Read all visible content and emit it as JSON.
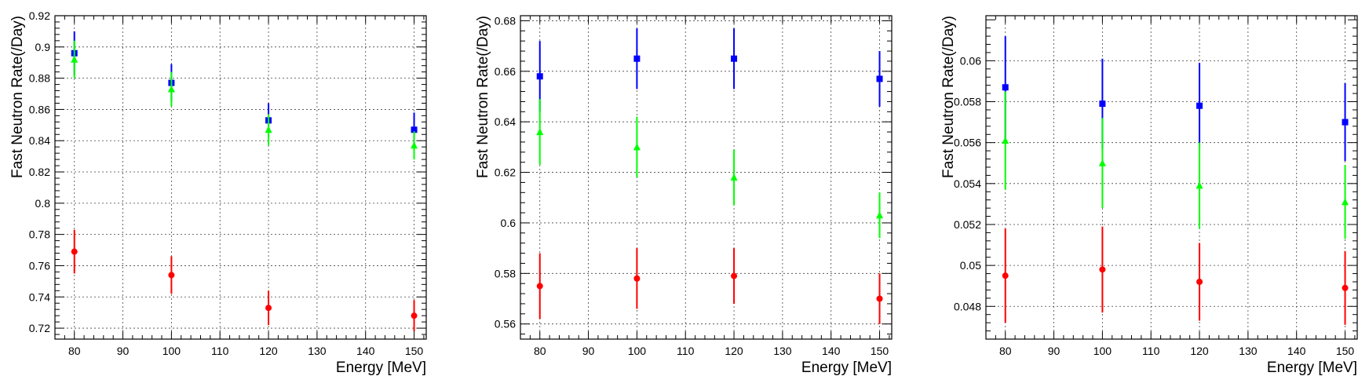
{
  "chart_data": [
    {
      "type": "scatter",
      "xlabel": "Energy [MeV]",
      "ylabel": "Fast Neutron Rate(/Day)",
      "xlim": [
        76,
        152.5
      ],
      "ylim": [
        0.713,
        0.92
      ],
      "xticks": [
        80,
        90,
        100,
        110,
        120,
        130,
        140,
        150
      ],
      "yticks": [
        0.72,
        0.74,
        0.76,
        0.78,
        0.8,
        0.82,
        0.84,
        0.86,
        0.88,
        0.9,
        0.92
      ],
      "ytick_labels": [
        "0.72",
        "0.74",
        "0.76",
        "0.78",
        "0.8",
        "0.82",
        "0.84",
        "0.86",
        "0.88",
        "0.9",
        "0.92"
      ],
      "grid": true,
      "series": [
        {
          "color": "#0000ff",
          "marker": "square",
          "x": [
            80,
            100,
            120,
            150
          ],
          "y": [
            0.896,
            0.877,
            0.853,
            0.847
          ],
          "err": [
            0.014,
            0.012,
            0.011,
            0.011
          ]
        },
        {
          "color": "#00ff00",
          "marker": "triangle",
          "x": [
            80,
            100,
            120,
            150
          ],
          "y": [
            0.892,
            0.873,
            0.847,
            0.837
          ],
          "err": [
            0.012,
            0.011,
            0.01,
            0.009
          ]
        },
        {
          "color": "#ff0000",
          "marker": "circle",
          "x": [
            80,
            100,
            120,
            150
          ],
          "y": [
            0.769,
            0.754,
            0.733,
            0.728
          ],
          "err": [
            0.014,
            0.012,
            0.011,
            0.01
          ]
        }
      ]
    },
    {
      "type": "scatter",
      "xlabel": "Energy [MeV]",
      "ylabel": "Fast Neutron Rate(/Day)",
      "xlim": [
        76,
        152.5
      ],
      "ylim": [
        0.554,
        0.682
      ],
      "xticks": [
        80,
        90,
        100,
        110,
        120,
        130,
        140,
        150
      ],
      "yticks": [
        0.56,
        0.58,
        0.6,
        0.62,
        0.64,
        0.66,
        0.68
      ],
      "ytick_labels": [
        "0.56",
        "0.58",
        "0.6",
        "0.62",
        "0.64",
        "0.66",
        "0.68"
      ],
      "grid": true,
      "series": [
        {
          "color": "#0000ff",
          "marker": "square",
          "x": [
            80,
            100,
            120,
            150
          ],
          "y": [
            0.658,
            0.665,
            0.665,
            0.657
          ],
          "err": [
            0.014,
            0.012,
            0.012,
            0.011
          ]
        },
        {
          "color": "#00ff00",
          "marker": "triangle",
          "x": [
            80,
            100,
            120,
            150
          ],
          "y": [
            0.636,
            0.63,
            0.618,
            0.603
          ],
          "err": [
            0.013,
            0.012,
            0.011,
            0.009
          ]
        },
        {
          "color": "#ff0000",
          "marker": "circle",
          "x": [
            80,
            100,
            120,
            150
          ],
          "y": [
            0.575,
            0.578,
            0.579,
            0.57
          ],
          "err": [
            0.013,
            0.012,
            0.011,
            0.01
          ]
        }
      ]
    },
    {
      "type": "scatter",
      "xlabel": "Energy [MeV]",
      "ylabel": "Fast Neutron Rate(/Day)",
      "xlim": [
        76,
        152.5
      ],
      "ylim": [
        0.0464,
        0.0622
      ],
      "xticks": [
        80,
        90,
        100,
        110,
        120,
        130,
        140,
        150
      ],
      "yticks": [
        0.048,
        0.05,
        0.052,
        0.054,
        0.056,
        0.058,
        0.06
      ],
      "ytick_labels": [
        "0.048",
        "0.05",
        "0.052",
        "0.054",
        "0.056",
        "0.058",
        "0.06"
      ],
      "grid": true,
      "series": [
        {
          "color": "#0000ff",
          "marker": "square",
          "x": [
            80,
            100,
            120,
            150
          ],
          "y": [
            0.0587,
            0.0579,
            0.0578,
            0.057
          ],
          "err": [
            0.0025,
            0.0022,
            0.0021,
            0.0019
          ]
        },
        {
          "color": "#00ff00",
          "marker": "triangle",
          "x": [
            80,
            100,
            120,
            150
          ],
          "y": [
            0.0561,
            0.055,
            0.0539,
            0.0531
          ],
          "err": [
            0.0024,
            0.0022,
            0.0021,
            0.0018
          ]
        },
        {
          "color": "#ff0000",
          "marker": "circle",
          "x": [
            80,
            100,
            120,
            150
          ],
          "y": [
            0.0495,
            0.0498,
            0.0492,
            0.0489
          ],
          "err": [
            0.0023,
            0.0021,
            0.0019,
            0.0018
          ]
        }
      ]
    }
  ]
}
